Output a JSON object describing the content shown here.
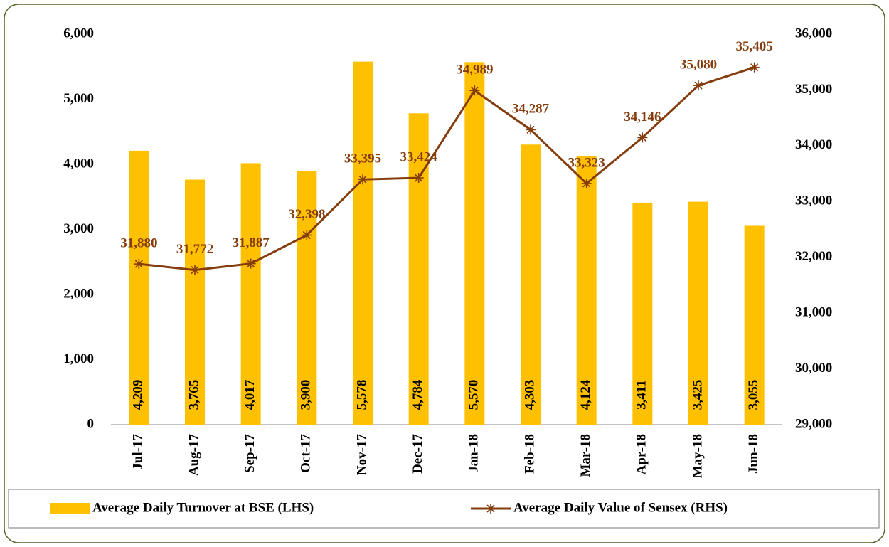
{
  "chart_data": {
    "type": "combo",
    "categories": [
      "Jul-17",
      "Aug-17",
      "Sep-17",
      "Oct-17",
      "Nov-17",
      "Dec-17",
      "Jan-18",
      "Feb-18",
      "Mar-18",
      "Apr-18",
      "May-18",
      "Jun-18"
    ],
    "series": [
      {
        "name": "Average Daily Turnover at BSE (LHS)",
        "type": "bar",
        "color": "#FFC000",
        "values": [
          4209,
          3765,
          4017,
          3900,
          5578,
          4784,
          5570,
          4303,
          4124,
          3411,
          3425,
          3055
        ],
        "value_labels": [
          "4,209",
          "3,765",
          "4,017",
          "3,900",
          "5,578",
          "4,784",
          "5,570",
          "4,303",
          "4,124",
          "3,411",
          "3,425",
          "3,055"
        ]
      },
      {
        "name": "Average Daily Value of Sensex (RHS)",
        "type": "line",
        "axis": "y2",
        "color": "#843C0C",
        "values": [
          31880,
          31772,
          31887,
          32398,
          33395,
          33424,
          34989,
          34287,
          33323,
          34146,
          35080,
          35405
        ],
        "value_labels": [
          "31,880",
          "31,772",
          "31,887",
          "32,398",
          "33,395",
          "33,424",
          "34,989",
          "34,287",
          "33,323",
          "34,146",
          "35,080",
          "35,405"
        ]
      }
    ],
    "ylim": [
      0,
      6000
    ],
    "yticks": [
      0,
      {
        "value": 1000,
        "label": "1,000"
      },
      {
        "value": 2000,
        "label": "2,000"
      },
      {
        "value": 3000,
        "label": "3,000"
      },
      {
        "value": 4000,
        "label": "4,000"
      },
      {
        "value": 5000,
        "label": "5,000"
      },
      {
        "value": 6000,
        "label": "6,000"
      }
    ],
    "y2lim": [
      29000,
      36000
    ],
    "y2ticks": [
      {
        "value": 29000,
        "label": "29,000"
      },
      {
        "value": 30000,
        "label": "30,000"
      },
      {
        "value": 31000,
        "label": "31,000"
      },
      {
        "value": 32000,
        "label": "32,000"
      },
      {
        "value": 33000,
        "label": "33,000"
      },
      {
        "value": 34000,
        "label": "34,000"
      },
      {
        "value": 35000,
        "label": "35,000"
      },
      {
        "value": 36000,
        "label": "36,000"
      }
    ],
    "legend": "bottom"
  }
}
